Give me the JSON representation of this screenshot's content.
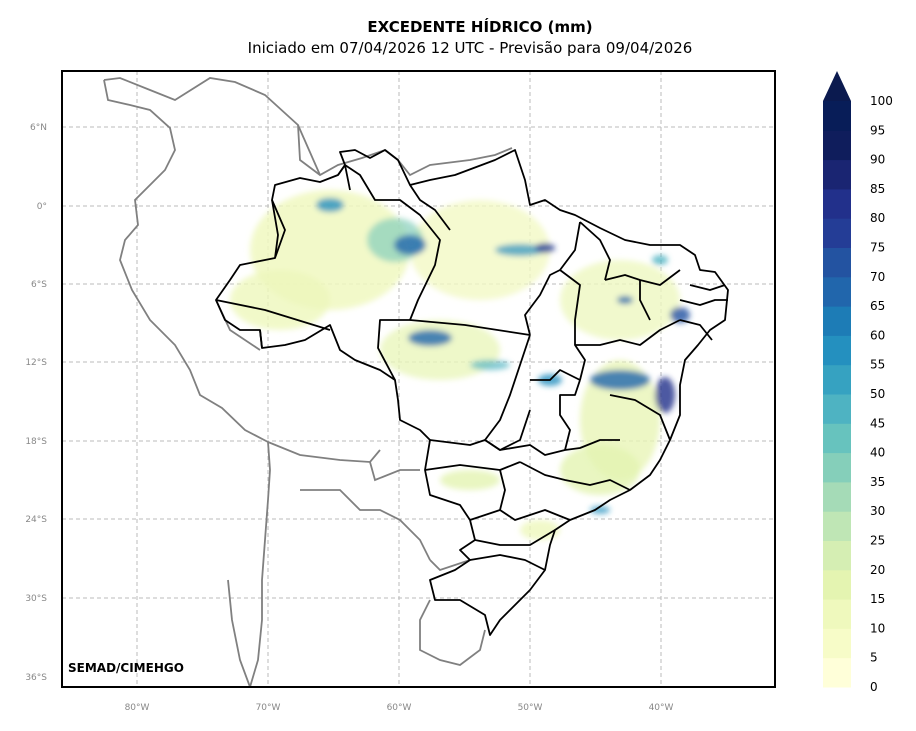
{
  "title": "EXCEDENTE HÍDRICO (mm)",
  "subtitle": "Iniciado em 07/04/2026 12 UTC - Previsão para 09/04/2026",
  "credit": "SEMAD/CIMEHGO",
  "map": {
    "lat_ticks": [
      "6°N",
      "0°",
      "6°S",
      "12°S",
      "18°S",
      "24°S",
      "30°S",
      "36°S"
    ],
    "lon_ticks": [
      "80°W",
      "70°W",
      "60°W",
      "50°W",
      "40°W"
    ]
  },
  "colorbar": {
    "labels": [
      "0",
      "5",
      "10",
      "15",
      "20",
      "25",
      "30",
      "35",
      "40",
      "45",
      "50",
      "55",
      "60",
      "65",
      "70",
      "75",
      "80",
      "85",
      "90",
      "95",
      "100"
    ],
    "colors": [
      "#ffffd9",
      "#f7fcc8",
      "#eff9bd",
      "#e4f4b1",
      "#d5eeb3",
      "#bfe6b5",
      "#a5dbb7",
      "#85cfba",
      "#67c3be",
      "#4eb3c2",
      "#36a2c1",
      "#2490bf",
      "#1d7cb6",
      "#2166ac",
      "#2353a1",
      "#243d96",
      "#22308b",
      "#1a2572",
      "#0f1d5c",
      "#081d58"
    ]
  }
}
